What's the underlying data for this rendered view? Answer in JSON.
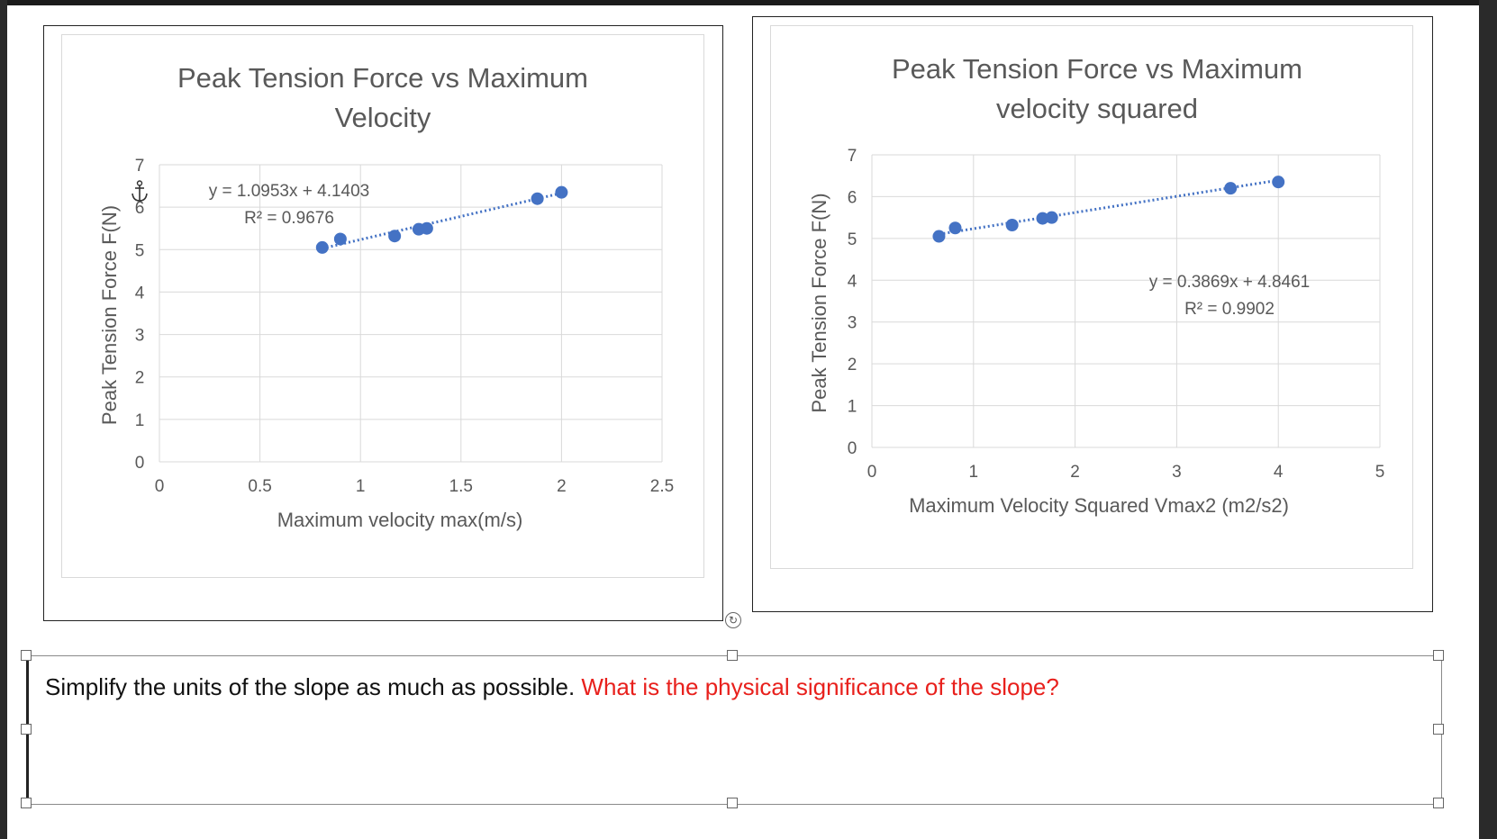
{
  "chart_data": [
    {
      "type": "scatter",
      "title_line1": "Peak Tension Force vs Maximum",
      "title_line2": "Velocity",
      "xlabel": "Maximum velocity max(m/s)",
      "ylabel": "Peak Tension Force F(N)",
      "xlim": [
        0,
        2.5
      ],
      "ylim": [
        0,
        7
      ],
      "x_ticks": [
        "0",
        "0.5",
        "1",
        "1.5",
        "2",
        "2.5"
      ],
      "y_ticks": [
        "0",
        "1",
        "2",
        "3",
        "4",
        "5",
        "6",
        "7"
      ],
      "points": [
        {
          "x": 0.81,
          "y": 5.05
        },
        {
          "x": 0.9,
          "y": 5.25
        },
        {
          "x": 1.17,
          "y": 5.32
        },
        {
          "x": 1.29,
          "y": 5.48
        },
        {
          "x": 1.33,
          "y": 5.5
        },
        {
          "x": 1.88,
          "y": 6.2
        },
        {
          "x": 2.0,
          "y": 6.35
        }
      ],
      "trendline": {
        "slope": 1.0953,
        "intercept": 4.1403,
        "x_range": [
          0.81,
          2.0
        ],
        "style": "dotted"
      },
      "equation": "y = 1.0953x + 4.1403",
      "r_squared": "R² = 0.9676",
      "grid": true,
      "point_color": "#4472c4"
    },
    {
      "type": "scatter",
      "title_line1": "Peak Tension Force vs Maximum",
      "title_line2": "velocity squared",
      "xlabel": "Maximum Velocity Squared Vmax2 (m2/s2)",
      "ylabel": "Peak Tension Force F(N)",
      "xlim": [
        0,
        5
      ],
      "ylim": [
        0,
        7
      ],
      "x_ticks": [
        "0",
        "1",
        "2",
        "3",
        "4",
        "5"
      ],
      "y_ticks": [
        "0",
        "1",
        "2",
        "3",
        "4",
        "5",
        "6",
        "7"
      ],
      "points": [
        {
          "x": 0.66,
          "y": 5.05
        },
        {
          "x": 0.82,
          "y": 5.25
        },
        {
          "x": 1.38,
          "y": 5.32
        },
        {
          "x": 1.68,
          "y": 5.48
        },
        {
          "x": 1.77,
          "y": 5.5
        },
        {
          "x": 3.53,
          "y": 6.2
        },
        {
          "x": 4.0,
          "y": 6.35
        }
      ],
      "trendline": {
        "slope": 0.3869,
        "intercept": 4.8461,
        "x_range": [
          0.66,
          4.0
        ],
        "style": "dotted"
      },
      "equation": "y = 0.3869x + 4.8461",
      "r_squared": "R² = 0.9902",
      "grid": true,
      "point_color": "#4472c4"
    }
  ],
  "question": {
    "black_text": "Simplify the units of the slope as much as possible. ",
    "red_text": "What is the physical significance of the slope?",
    "red_color": "#e8201c"
  },
  "anchor_icon": "anchor-icon",
  "rotate_icon": "rotate-handle-icon"
}
